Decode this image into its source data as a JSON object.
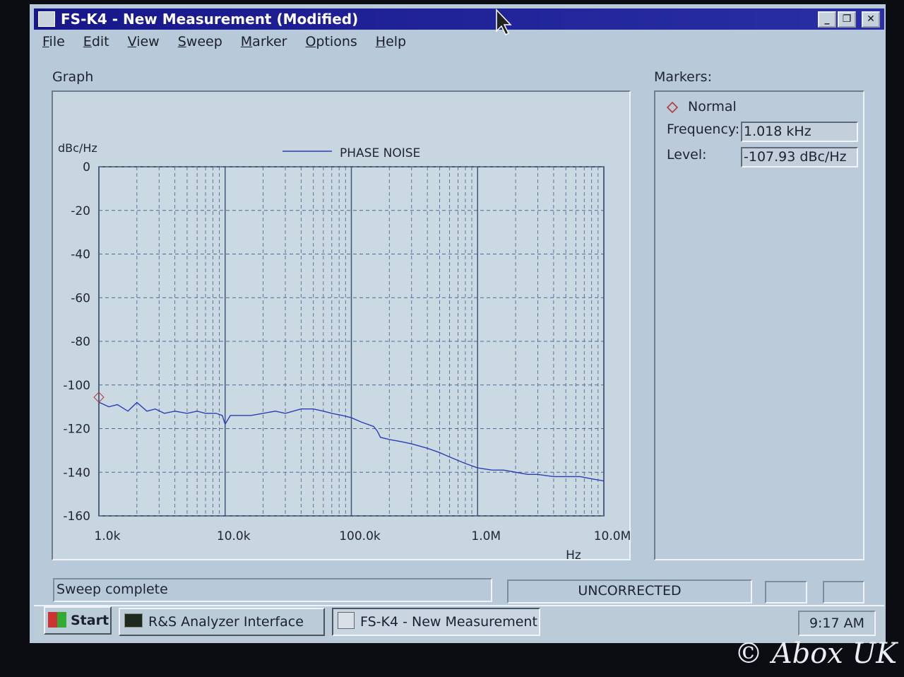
{
  "window": {
    "title": "FS-K4 - New Measurement (Modified)",
    "menu": [
      "File",
      "Edit",
      "View",
      "Sweep",
      "Marker",
      "Options",
      "Help"
    ]
  },
  "graph_panel": {
    "label": "Graph"
  },
  "chart_data": {
    "type": "line",
    "y_label": "dBc/Hz",
    "x_label": "Hz",
    "log_x": true,
    "grid": true,
    "minor_grid": true,
    "xlim": [
      1000,
      10000000
    ],
    "xticks": [
      {
        "value": 1000,
        "label": "1.0k"
      },
      {
        "value": 10000,
        "label": "10.0k"
      },
      {
        "value": 100000,
        "label": "100.0k"
      },
      {
        "value": 1000000,
        "label": "1.0M"
      },
      {
        "value": 10000000,
        "label": "10.0M"
      }
    ],
    "ylim": [
      -160,
      0
    ],
    "yticks": [
      -160,
      -140,
      -120,
      -100,
      -80,
      -60,
      -40,
      -20,
      0
    ],
    "x": [
      1000,
      1200,
      1400,
      1700,
      2000,
      2400,
      2800,
      3300,
      4000,
      5000,
      6000,
      7000,
      8500,
      9500,
      10000,
      11000,
      13000,
      16000,
      20000,
      25000,
      30000,
      40000,
      50000,
      60000,
      70000,
      85000,
      100000,
      120000,
      150000,
      160000,
      170000,
      200000,
      250000,
      300000,
      400000,
      500000,
      600000,
      800000,
      1000000,
      1300000,
      1600000,
      2000000,
      2500000,
      3000000,
      4000000,
      5000000,
      6500000,
      8000000,
      10000000
    ],
    "series": [
      {
        "name": "PHASE NOISE",
        "color": "#2b3fb4",
        "values": [
          -107.9,
          -110,
          -109,
          -112,
          -108,
          -112,
          -111,
          -113,
          -112,
          -113,
          -112,
          -113,
          -113,
          -114,
          -118,
          -114,
          -114,
          -114,
          -113,
          -112,
          -113,
          -111,
          -111,
          -112,
          -113,
          -114,
          -115,
          -117,
          -119,
          -121,
          -124,
          -125,
          -126,
          -127,
          -129,
          -131,
          -133,
          -136,
          -138,
          -139,
          -139,
          -140,
          -141,
          -141,
          -142,
          -142,
          -142,
          -143,
          -144
        ]
      }
    ]
  },
  "markers_panel": {
    "label": "Markers:",
    "marker_type": "Normal",
    "fields": [
      {
        "label": "Frequency:",
        "value": "1.018 kHz"
      },
      {
        "label": "Level:",
        "value": "-107.93 dBc/Hz"
      }
    ]
  },
  "status_bar": {
    "message": "Sweep complete",
    "correction": "UNCORRECTED"
  },
  "taskbar": {
    "start": "Start",
    "buttons": [
      "R&S Analyzer Interface",
      "FS-K4 - New Measurement..."
    ],
    "clock": "9:17 AM"
  },
  "watermark": "© Abox UK"
}
